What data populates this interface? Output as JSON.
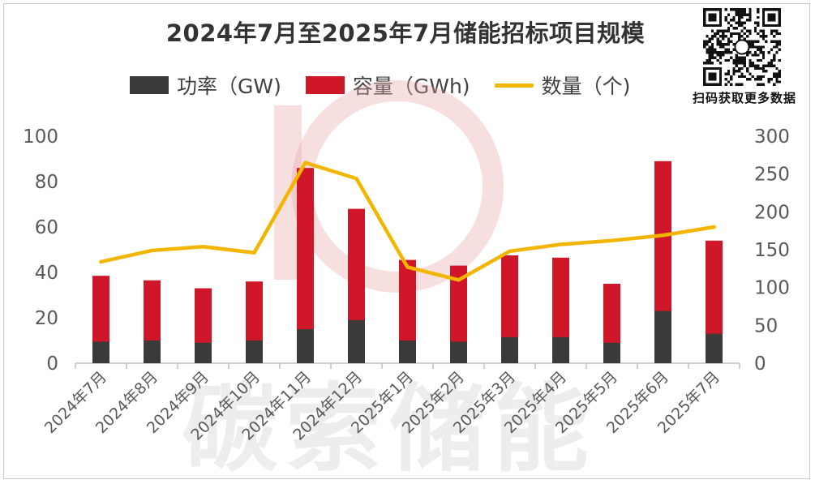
{
  "colors": {
    "power": "#3c3a39",
    "capacity": "#d0172a",
    "count": "#f2b600",
    "watermark": "#e8a3a5"
  },
  "qr": {
    "icon": "qr-code-icon",
    "caption": "扫码获取更多数据"
  },
  "watermark_text": "碳索储能",
  "chart_data": {
    "type": "bar",
    "title": "2024年7月至2025年7月储能招标项目规模",
    "legend_position": "top",
    "grid": false,
    "categories": [
      "2024年7月",
      "2024年8月",
      "2024年9月",
      "2024年10月",
      "2024年11月",
      "2024年12月",
      "2025年1月",
      "2025年2月",
      "2025年3月",
      "2025年4月",
      "2025年5月",
      "2025年6月",
      "2025年7月"
    ],
    "y_left": {
      "min": 0,
      "max": 100,
      "ticks": [
        0,
        20,
        40,
        60,
        80,
        100
      ]
    },
    "y_right": {
      "min": 0,
      "max": 300,
      "ticks": [
        0,
        50,
        100,
        150,
        200,
        250,
        300
      ]
    },
    "series": [
      {
        "name": "功率（GW)",
        "type": "bar",
        "axis": "left",
        "values": [
          9.5,
          10,
          9,
          10,
          15,
          19,
          10,
          9.5,
          11.5,
          11.5,
          9,
          23,
          13
        ]
      },
      {
        "name": "容量（GWh)",
        "type": "bar",
        "axis": "left",
        "values": [
          38.5,
          36.5,
          33,
          36,
          86,
          68,
          45.5,
          43,
          47.5,
          46.5,
          35,
          89,
          54
        ]
      },
      {
        "name": "数量（个)",
        "type": "line",
        "axis": "right",
        "values": [
          134,
          149,
          154,
          146,
          265,
          244,
          127,
          110,
          148,
          157,
          162,
          169,
          180
        ]
      }
    ]
  }
}
